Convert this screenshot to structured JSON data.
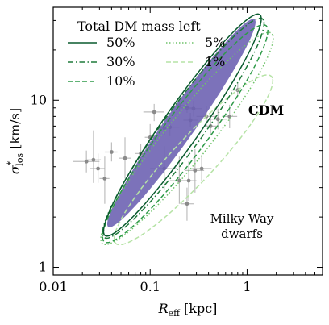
{
  "chart_data": {
    "type": "scatter",
    "title": "",
    "xlabel": "R_eff [kpc]",
    "ylabel": "σ*_los [km/s]",
    "xscale": "log",
    "yscale": "log",
    "xlim": [
      0.01,
      6
    ],
    "ylim": [
      0.9,
      36
    ],
    "x_ticks": [
      {
        "value": 0.01,
        "label": "0.01"
      },
      {
        "value": 0.1,
        "label": "0.1"
      },
      {
        "value": 1,
        "label": "1"
      }
    ],
    "y_ticks": [
      {
        "value": 1,
        "label": "1"
      },
      {
        "value": 10,
        "label": "10"
      }
    ],
    "legend": {
      "title": "Total DM mass left",
      "position": "top-left",
      "entries": [
        {
          "name": "50%",
          "color": "#0a5a2e",
          "dash": "solid"
        },
        {
          "name": "5%",
          "color": "#6fc36a",
          "dash": "dotted"
        },
        {
          "name": "30%",
          "color": "#1e7a3a",
          "dash": "dashdot"
        },
        {
          "name": "1%",
          "color": "#b6e3a6",
          "dash": "dashed"
        },
        {
          "name": "10%",
          "color": "#2e9a48",
          "dash": "dashed"
        }
      ]
    },
    "cdm_region": {
      "label": "CDM",
      "color": "#6a5fb0",
      "center": [
        0.21,
        7.3
      ],
      "angle_deg": 39,
      "half_axes_dex": [
        0.98,
        0.12
      ]
    },
    "contours": [
      {
        "level": "50%",
        "center": [
          0.215,
          7.1
        ],
        "angle_deg": 39,
        "half_axes_dex": [
          1.04,
          0.15
        ]
      },
      {
        "level": "30%",
        "center": [
          0.22,
          6.8
        ],
        "angle_deg": 38,
        "half_axes_dex": [
          1.05,
          0.16
        ]
      },
      {
        "level": "10%",
        "center": [
          0.23,
          6.3
        ],
        "angle_deg": 37,
        "half_axes_dex": [
          1.06,
          0.17
        ]
      },
      {
        "level": "5%",
        "center": [
          0.24,
          5.9
        ],
        "angle_deg": 35,
        "half_axes_dex": [
          1.08,
          0.17
        ]
      },
      {
        "level": "1%",
        "center": [
          0.28,
          4.4
        ],
        "angle_deg": 31,
        "half_axes_dex": [
          0.95,
          0.16
        ]
      }
    ],
    "dwarfs": {
      "label_line1": "Milky Way",
      "label_line2": "dwarfs",
      "color": "#a9a9a9",
      "points": [
        {
          "x": 0.022,
          "y": 4.3,
          "xlo": 0.016,
          "xhi": 0.03,
          "ylo": 3.7,
          "yhi": 5.0
        },
        {
          "x": 0.026,
          "y": 4.4,
          "xlo": 0.022,
          "xhi": 0.031,
          "ylo": 3.2,
          "yhi": 6.6
        },
        {
          "x": 0.029,
          "y": 3.9,
          "xlo": 0.024,
          "xhi": 0.034,
          "ylo": 3.2,
          "yhi": 4.8
        },
        {
          "x": 0.034,
          "y": 3.4,
          "xlo": 0.03,
          "xhi": 0.038,
          "ylo": 2.4,
          "yhi": 4.6
        },
        {
          "x": 0.04,
          "y": 4.9,
          "xlo": 0.034,
          "xhi": 0.046,
          "ylo": 4.3,
          "yhi": 5.6
        },
        {
          "x": 0.055,
          "y": 4.5,
          "xlo": 0.048,
          "xhi": 0.063,
          "ylo": 3.4,
          "yhi": 6.0
        },
        {
          "x": 0.08,
          "y": 4.8,
          "xlo": 0.07,
          "xhi": 0.09,
          "ylo": 4.2,
          "yhi": 5.5
        },
        {
          "x": 0.1,
          "y": 6.0,
          "xlo": 0.088,
          "xhi": 0.113,
          "ylo": 5.0,
          "yhi": 7.2
        },
        {
          "x": 0.11,
          "y": 8.5,
          "xlo": 0.085,
          "xhi": 0.14,
          "ylo": 7.5,
          "yhi": 9.5
        },
        {
          "x": 0.14,
          "y": 6.8,
          "xlo": 0.12,
          "xhi": 0.16,
          "ylo": 6.2,
          "yhi": 7.4
        },
        {
          "x": 0.16,
          "y": 6.9,
          "xlo": 0.13,
          "xhi": 0.2,
          "ylo": 6.1,
          "yhi": 7.7
        },
        {
          "x": 0.2,
          "y": 9.3,
          "xlo": 0.17,
          "xhi": 0.24,
          "ylo": 8.6,
          "yhi": 10.2
        },
        {
          "x": 0.24,
          "y": 9.0,
          "xlo": 0.2,
          "xhi": 0.29,
          "ylo": 8.4,
          "yhi": 9.7
        },
        {
          "x": 0.28,
          "y": 8.9,
          "xlo": 0.23,
          "xhi": 0.34,
          "ylo": 8.0,
          "yhi": 9.9
        },
        {
          "x": 0.26,
          "y": 7.6,
          "xlo": 0.22,
          "xhi": 0.31,
          "ylo": 6.9,
          "yhi": 8.4
        },
        {
          "x": 0.38,
          "y": 8.0,
          "xlo": 0.3,
          "xhi": 0.48,
          "ylo": 7.0,
          "yhi": 9.2
        },
        {
          "x": 0.5,
          "y": 7.7,
          "xlo": 0.4,
          "xhi": 0.62,
          "ylo": 6.7,
          "yhi": 8.9
        },
        {
          "x": 0.66,
          "y": 8.0,
          "xlo": 0.55,
          "xhi": 0.79,
          "ylo": 6.8,
          "yhi": 9.4
        },
        {
          "x": 0.8,
          "y": 11.5,
          "xlo": 0.68,
          "xhi": 0.94,
          "ylo": 10.5,
          "yhi": 12.6
        },
        {
          "x": 0.14,
          "y": 3.9,
          "xlo": 0.1,
          "xhi": 0.19,
          "ylo": 2.9,
          "yhi": 5.3
        },
        {
          "x": 0.2,
          "y": 3.3,
          "xlo": 0.16,
          "xhi": 0.25,
          "ylo": 2.4,
          "yhi": 4.6
        },
        {
          "x": 0.25,
          "y": 3.3,
          "xlo": 0.21,
          "xhi": 0.3,
          "ylo": 2.5,
          "yhi": 4.3
        },
        {
          "x": 0.29,
          "y": 3.8,
          "xlo": 0.23,
          "xhi": 0.36,
          "ylo": 2.8,
          "yhi": 5.1
        },
        {
          "x": 0.34,
          "y": 3.9,
          "xlo": 0.27,
          "xhi": 0.43,
          "ylo": 3.3,
          "yhi": 4.6
        },
        {
          "x": 0.24,
          "y": 2.4,
          "xlo": 0.21,
          "xhi": 0.28,
          "ylo": 1.9,
          "yhi": 3.0
        },
        {
          "x": 0.42,
          "y": 7.0,
          "xlo": 0.36,
          "xhi": 0.49,
          "ylo": 6.2,
          "yhi": 7.9
        }
      ]
    }
  }
}
